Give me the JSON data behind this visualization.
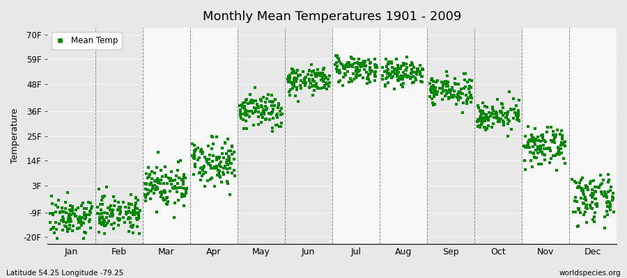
{
  "title": "Monthly Mean Temperatures 1901 - 2009",
  "ylabel": "Temperature",
  "bottom_left": "Latitude 54.25 Longitude -79.25",
  "bottom_right": "worldspecies.org",
  "legend_label": "Mean Temp",
  "dot_color": "#008800",
  "bg_gray": "#e8e8e8",
  "bg_white": "#f8f8f8",
  "yticks": [
    -20,
    -9,
    3,
    14,
    25,
    36,
    48,
    59,
    70
  ],
  "ytick_labels": [
    "-20F",
    "-9F",
    "3F",
    "14F",
    "25F",
    "36F",
    "48F",
    "59F",
    "70F"
  ],
  "ylim": [
    -23,
    73
  ],
  "months": [
    "Jan",
    "Feb",
    "Mar",
    "Apr",
    "May",
    "Jun",
    "Jul",
    "Aug",
    "Sep",
    "Oct",
    "Nov",
    "Dec"
  ],
  "monthly_means_f": [
    -11,
    -9,
    3,
    14,
    36,
    50,
    55,
    53,
    45,
    34,
    20,
    -3
  ],
  "monthly_stds_f": [
    4,
    4,
    5,
    5,
    4,
    3,
    3,
    3,
    3,
    3,
    4,
    5
  ],
  "n_years": 109,
  "seed": 7,
  "dot_size": 5
}
